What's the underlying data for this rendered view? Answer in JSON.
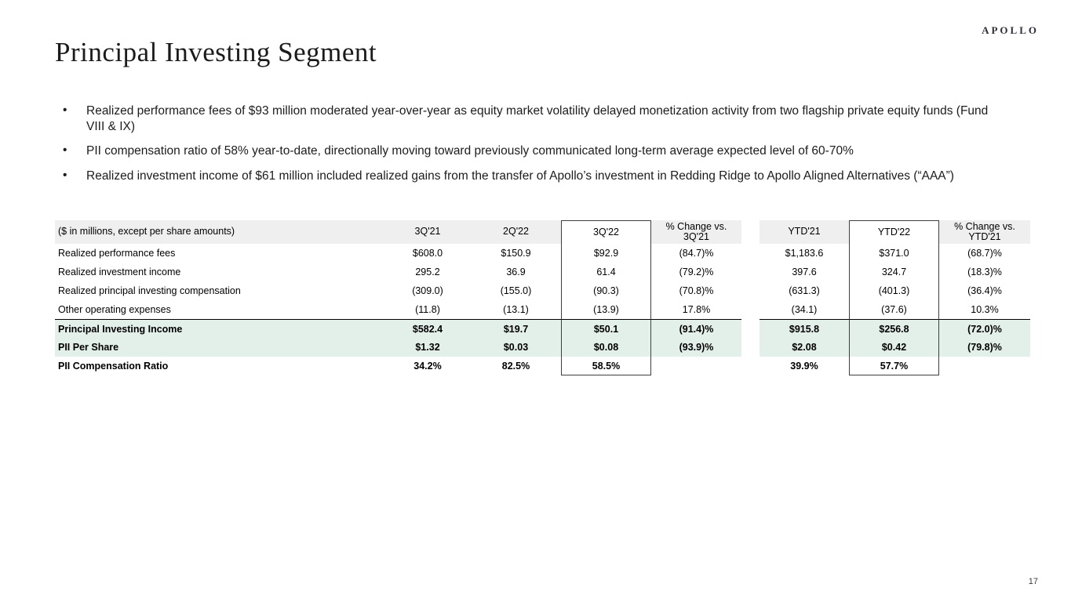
{
  "brand": {
    "logo_text": "APOLLO"
  },
  "page": {
    "title": "Principal Investing Segment",
    "page_number": "17"
  },
  "bullets": [
    "Realized performance fees of $93 million moderated year-over-year as equity market volatility delayed monetization activity from two flagship private equity funds (Fund VIII & IX)",
    "PII compensation ratio of 58% year-to-date, directionally moving toward previously communicated long-term average expected level of 60-70%",
    "Realized investment income of $61 million included realized gains from the transfer of Apollo’s investment in Redding Ridge to Apollo Aligned Alternatives (“AAA”)"
  ],
  "table": {
    "note": "($ in millions, except per share amounts)",
    "columns": [
      "3Q'21",
      "2Q'22",
      "3Q'22",
      "% Change vs. 3Q'21",
      "YTD'21",
      "YTD'22",
      "% Change vs. YTD'21"
    ],
    "rows": [
      {
        "label": "Realized performance fees",
        "values": [
          "$608.0",
          "$150.9",
          "$92.9",
          "(84.7)%",
          "$1,183.6",
          "$371.0",
          "(68.7)%"
        ]
      },
      {
        "label": "Realized investment income",
        "values": [
          "295.2",
          "36.9",
          "61.4",
          "(79.2)%",
          "397.6",
          "324.7",
          "(18.3)%"
        ]
      },
      {
        "label": "Realized principal investing compensation",
        "values": [
          "(309.0)",
          "(155.0)",
          "(90.3)",
          "(70.8)%",
          "(631.3)",
          "(401.3)",
          "(36.4)%"
        ]
      },
      {
        "label": "Other operating expenses",
        "values": [
          "(11.8)",
          "(13.1)",
          "(13.9)",
          "17.8%",
          "(34.1)",
          "(37.6)",
          "10.3%"
        ]
      },
      {
        "label": "Principal Investing Income",
        "values": [
          "$582.4",
          "$19.7",
          "$50.1",
          "(91.4)%",
          "$915.8",
          "$256.8",
          "(72.0)%"
        ]
      },
      {
        "label": "PII Per Share",
        "values": [
          "$1.32",
          "$0.03",
          "$0.08",
          "(93.9)%",
          "$2.08",
          "$0.42",
          "(79.8)%"
        ]
      },
      {
        "label": "PII Compensation Ratio",
        "values": [
          "34.2%",
          "82.5%",
          "58.5%",
          "",
          "39.9%",
          "57.7%",
          ""
        ]
      }
    ]
  },
  "colors": {
    "highlight_row_bg": "#e3efe9",
    "table_header_bg": "#efefef",
    "box_border": "#3f3f3f"
  }
}
